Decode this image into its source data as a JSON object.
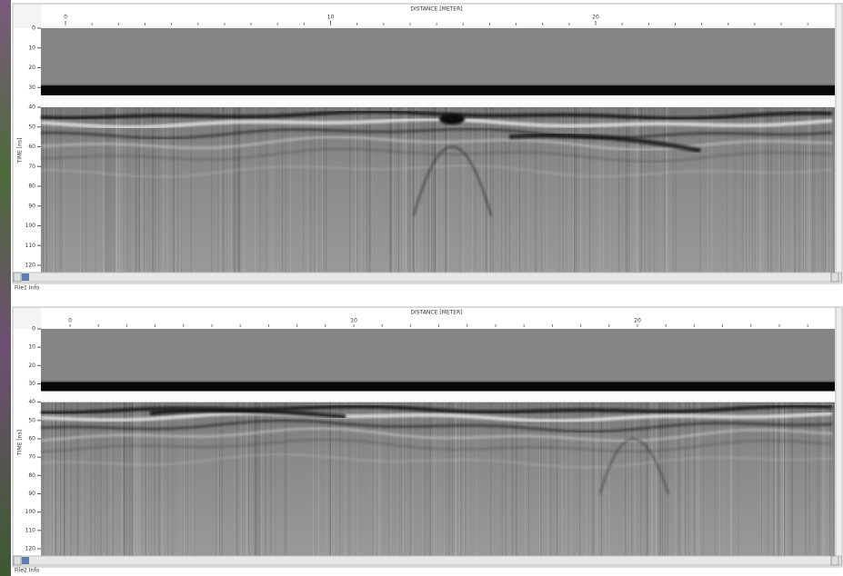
{
  "panels": [
    {
      "x_axis_title": "DISTANCE [METER]",
      "x_ticks": [
        0,
        10,
        20
      ],
      "y_axis_title": "TIME [ns]",
      "y_ticks": [
        0,
        10,
        20,
        30,
        40,
        50,
        60,
        70,
        80,
        90,
        100,
        110,
        120
      ],
      "footer": "File1 Info"
    },
    {
      "x_axis_title": "DISTANCE [METER]",
      "x_ticks": [
        0,
        10,
        20
      ],
      "y_axis_title": "TIME [ns]",
      "y_ticks": [
        0,
        10,
        20,
        30,
        40,
        50,
        60,
        70,
        80,
        90,
        100,
        110,
        120
      ],
      "footer": "File2 Info"
    }
  ]
}
